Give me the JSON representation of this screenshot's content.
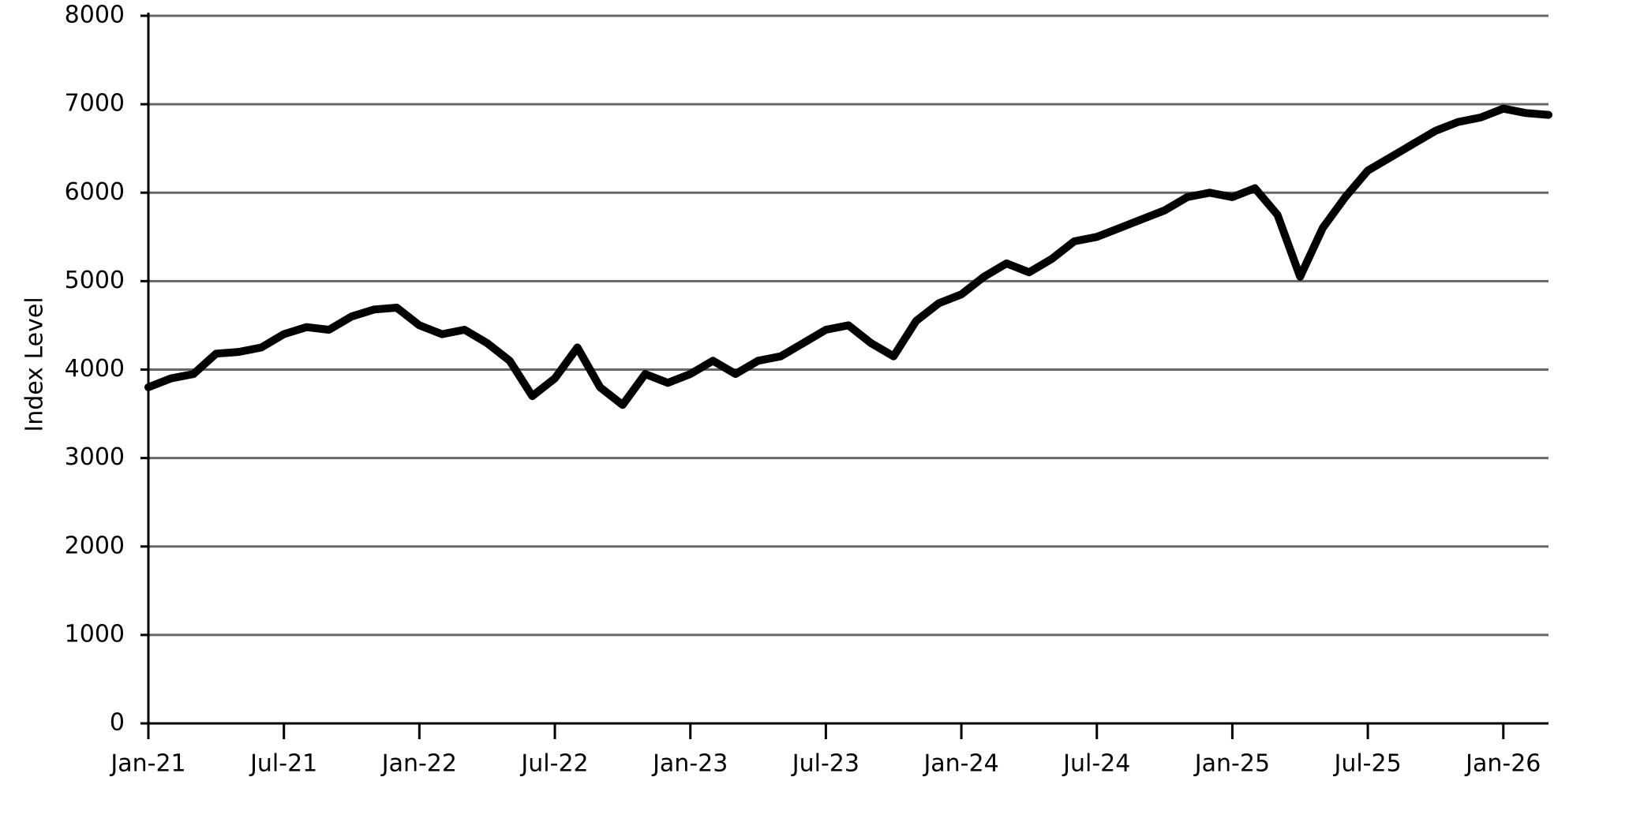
{
  "chart_data": {
    "type": "line",
    "ylabel": "Index Level",
    "x": [
      "2021-01",
      "2021-02",
      "2021-03",
      "2021-04",
      "2021-05",
      "2021-06",
      "2021-07",
      "2021-08",
      "2021-09",
      "2021-10",
      "2021-11",
      "2021-12",
      "2022-01",
      "2022-02",
      "2022-03",
      "2022-04",
      "2022-05",
      "2022-06",
      "2022-07",
      "2022-08",
      "2022-09",
      "2022-10",
      "2022-11",
      "2022-12",
      "2023-01",
      "2023-02",
      "2023-03",
      "2023-04",
      "2023-05",
      "2023-06",
      "2023-07",
      "2023-08",
      "2023-09",
      "2023-10",
      "2023-11",
      "2023-12",
      "2024-01",
      "2024-02",
      "2024-03",
      "2024-04",
      "2024-05",
      "2024-06",
      "2024-07",
      "2024-08",
      "2024-09",
      "2024-10",
      "2024-11",
      "2024-12",
      "2025-01",
      "2025-02",
      "2025-03",
      "2025-04",
      "2025-05",
      "2025-06",
      "2025-07",
      "2025-08",
      "2025-09",
      "2025-10",
      "2025-11",
      "2025-12",
      "2026-01",
      "2026-02",
      "2026-03"
    ],
    "values": [
      3800,
      3900,
      3950,
      4180,
      4200,
      4250,
      4400,
      4480,
      4450,
      4600,
      4680,
      4700,
      4500,
      4400,
      4450,
      4300,
      4100,
      3700,
      3900,
      4250,
      3800,
      3600,
      3950,
      3850,
      3950,
      4100,
      3950,
      4100,
      4150,
      4300,
      4450,
      4500,
      4300,
      4150,
      4550,
      4750,
      4850,
      5050,
      5200,
      5100,
      5250,
      5450,
      5500,
      5600,
      5700,
      5800,
      5950,
      6000,
      5950,
      6050,
      5750,
      5050,
      5600,
      5950,
      6250,
      6400,
      6550,
      6700,
      6800,
      6850,
      6950,
      6900,
      6880
    ],
    "color": "#000000",
    "xlim": [
      "2021-01",
      "2026-03"
    ],
    "xticks": [
      {
        "value": "2021-01",
        "label": "Jan-21"
      },
      {
        "value": "2021-07",
        "label": "Jul-21"
      },
      {
        "value": "2022-01",
        "label": "Jan-22"
      },
      {
        "value": "2022-07",
        "label": "Jul-22"
      },
      {
        "value": "2023-01",
        "label": "Jan-23"
      },
      {
        "value": "2023-07",
        "label": "Jul-23"
      },
      {
        "value": "2024-01",
        "label": "Jan-24"
      },
      {
        "value": "2024-07",
        "label": "Jul-24"
      },
      {
        "value": "2025-01",
        "label": "Jan-25"
      },
      {
        "value": "2025-07",
        "label": "Jul-25"
      },
      {
        "value": "2026-01",
        "label": "Jan-26"
      }
    ],
    "ylim": [
      0,
      8000
    ],
    "yticks": [
      0,
      1000,
      2000,
      3000,
      4000,
      5000,
      6000,
      7000,
      8000
    ],
    "grid": true
  }
}
